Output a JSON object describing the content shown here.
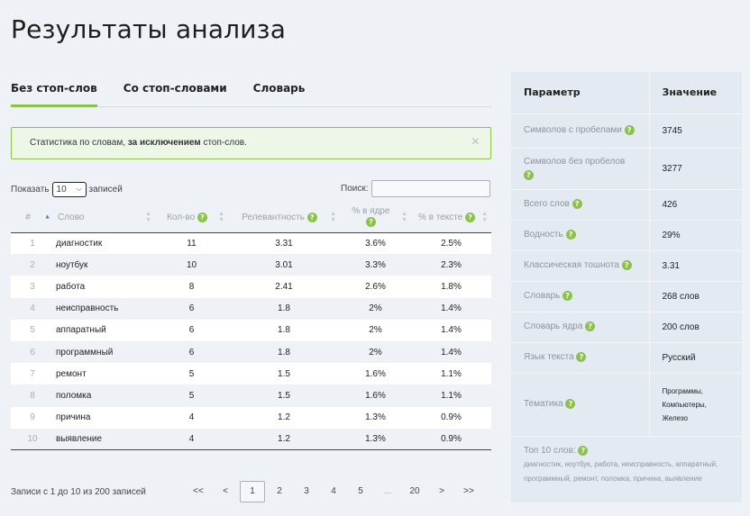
{
  "page_title": "Результаты анализа",
  "tabs": [
    {
      "label": "Без стоп-слов",
      "active": true
    },
    {
      "label": "Со стоп-словами",
      "active": false
    },
    {
      "label": "Словарь",
      "active": false
    }
  ],
  "info": {
    "prefix": "Статистика по словам, ",
    "bold": "за исключением",
    "suffix": " стоп-слов.",
    "close": "×"
  },
  "controls": {
    "show_label": "Показать",
    "length_value": "10",
    "records_label": "записей",
    "search_label": "Поиск:",
    "search_value": ""
  },
  "table": {
    "headers": {
      "num": "#",
      "word": "Слово",
      "count": "Кол-во",
      "relevance": "Релевантность",
      "core": "% в ядре",
      "text": "% в тексте"
    },
    "rows": [
      {
        "num": "1",
        "word": "диагностик",
        "count": "11",
        "relevance": "3.31",
        "core": "3.6%",
        "text": "2.5%"
      },
      {
        "num": "2",
        "word": "ноутбук",
        "count": "10",
        "relevance": "3.01",
        "core": "3.3%",
        "text": "2.3%"
      },
      {
        "num": "3",
        "word": "работа",
        "count": "8",
        "relevance": "2.41",
        "core": "2.6%",
        "text": "1.8%"
      },
      {
        "num": "4",
        "word": "неисправность",
        "count": "6",
        "relevance": "1.8",
        "core": "2%",
        "text": "1.4%"
      },
      {
        "num": "5",
        "word": "аппаратный",
        "count": "6",
        "relevance": "1.8",
        "core": "2%",
        "text": "1.4%"
      },
      {
        "num": "6",
        "word": "программный",
        "count": "6",
        "relevance": "1.8",
        "core": "2%",
        "text": "1.4%"
      },
      {
        "num": "7",
        "word": "ремонт",
        "count": "5",
        "relevance": "1.5",
        "core": "1.6%",
        "text": "1.1%"
      },
      {
        "num": "8",
        "word": "поломка",
        "count": "5",
        "relevance": "1.5",
        "core": "1.6%",
        "text": "1.1%"
      },
      {
        "num": "9",
        "word": "причина",
        "count": "4",
        "relevance": "1.2",
        "core": "1.3%",
        "text": "0.9%"
      },
      {
        "num": "10",
        "word": "выявление",
        "count": "4",
        "relevance": "1.2",
        "core": "1.3%",
        "text": "0.9%"
      }
    ]
  },
  "footer": {
    "records_info": "Записи с 1 до 10 из 200 записей",
    "pages": [
      "<<",
      "<",
      "1",
      "2",
      "3",
      "4",
      "5",
      "...",
      "20",
      ">",
      ">>"
    ],
    "current_page": "1"
  },
  "params": {
    "header_param": "Параметр",
    "header_value": "Значение",
    "rows": [
      {
        "name": "Символов с пробелами",
        "value": "3745"
      },
      {
        "name": "Символов без пробелов",
        "value": "3277"
      },
      {
        "name": "Всего слов",
        "value": "426"
      },
      {
        "name": "Водность",
        "value": "29%"
      },
      {
        "name": "Классическая тошнота",
        "value": "3.31"
      },
      {
        "name": "Словарь",
        "value": "268 слов"
      },
      {
        "name": "Словарь ядра",
        "value": "200 слов"
      },
      {
        "name": "Язык текста",
        "value": "Русский"
      },
      {
        "name": "Тематика",
        "value_lines": [
          "Программы,",
          "Компьютеры,",
          "Железо"
        ]
      }
    ],
    "top10": {
      "label": "Топ 10 слов:",
      "line1": "диагностик, ноутбук, работа, неисправность, аппаратный,",
      "line2": "программный, ремонт, поломка, причина, выявление"
    }
  },
  "icons": {
    "help": "?",
    "sort_asc": "▲",
    "sort_desc": "▼",
    "chevron": "⌵"
  },
  "colors": {
    "accent": "#8bc34a",
    "sort_active": "#5b6cd6"
  }
}
